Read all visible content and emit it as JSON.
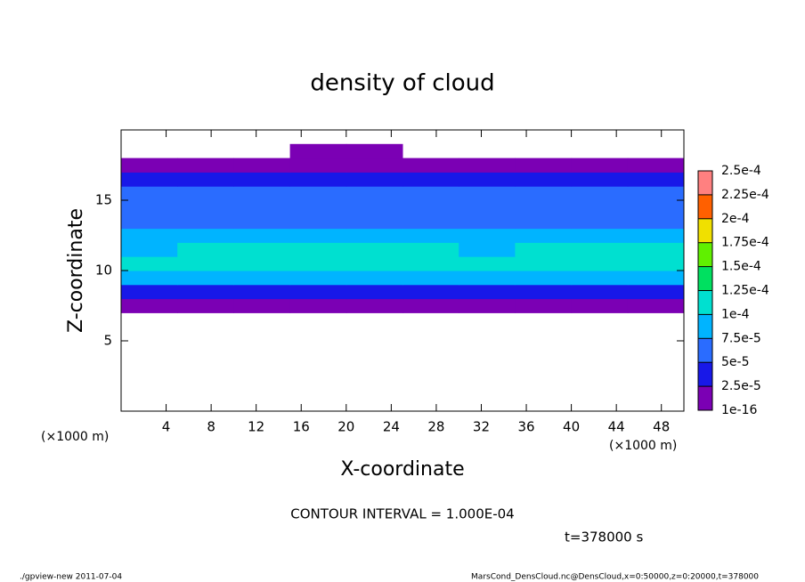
{
  "chart_data": {
    "type": "heatmap",
    "title": "density of cloud",
    "x_label": "X-coordinate",
    "y_label": "Z-coordinate",
    "x_unit_left": "(×1000 m)",
    "x_unit_right": "(×1000 m)",
    "contour_note": "CONTOUR INTERVAL = 1.000E-04",
    "time_note": "t=378000 s",
    "footer_left": "./gpview-new  2011-07-04",
    "footer_right": "MarsCond_DensCloud.nc@DensCloud,x=0:50000,z=0:20000,t=378000",
    "xlim": [
      0,
      50
    ],
    "xticks": [
      4,
      8,
      12,
      16,
      20,
      24,
      28,
      32,
      36,
      40,
      44,
      48
    ],
    "ylim": [
      0,
      20
    ],
    "yticks": [
      5,
      10,
      15
    ],
    "x_edges": [
      0,
      5,
      10,
      15,
      20,
      25,
      30,
      35,
      40,
      45,
      50
    ],
    "z_edges": [
      6,
      7,
      8,
      9,
      10,
      11,
      12,
      13,
      14,
      15,
      16,
      17,
      18,
      19
    ],
    "values": [
      [
        null,
        null,
        null,
        null,
        null,
        null,
        null,
        null,
        null,
        null
      ],
      [
        1e-05,
        1e-05,
        1e-05,
        1e-05,
        1e-05,
        1e-05,
        1e-05,
        1e-05,
        1e-05,
        1e-05
      ],
      [
        4e-05,
        3.5e-05,
        3e-05,
        4e-05,
        4e-05,
        4.5e-05,
        3.5e-05,
        4e-05,
        4e-05,
        4e-05
      ],
      [
        8.5e-05,
        8e-05,
        8.5e-05,
        8e-05,
        8e-05,
        8.5e-05,
        8e-05,
        8.5e-05,
        8e-05,
        8.5e-05
      ],
      [
        0.000105,
        0.000105,
        0.00011,
        0.000105,
        0.000105,
        0.0001,
        0.000105,
        0.000105,
        0.000105,
        0.000105
      ],
      [
        9.5e-05,
        0.000105,
        0.000105,
        0.000105,
        0.000105,
        0.0001,
        9e-05,
        0.000105,
        0.000105,
        0.0001
      ],
      [
        8e-05,
        8.5e-05,
        8.5e-05,
        9e-05,
        9e-05,
        9e-05,
        8e-05,
        8e-05,
        8e-05,
        8e-05
      ],
      [
        7e-05,
        7e-05,
        7e-05,
        7e-05,
        7e-05,
        7e-05,
        7e-05,
        7e-05,
        7e-05,
        7e-05
      ],
      [
        6e-05,
        6e-05,
        6e-05,
        6e-05,
        6e-05,
        6e-05,
        6e-05,
        6e-05,
        6e-05,
        6e-05
      ],
      [
        5e-05,
        5e-05,
        5e-05,
        5e-05,
        5e-05,
        5e-05,
        5e-05,
        5e-05,
        5e-05,
        5e-05
      ],
      [
        3e-05,
        3e-05,
        3e-05,
        3e-05,
        3e-05,
        3e-05,
        3e-05,
        3e-05,
        3e-05,
        3e-05
      ],
      [
        1e-05,
        1e-05,
        1e-05,
        1e-05,
        1e-05,
        1e-05,
        1e-05,
        1e-05,
        1e-05,
        1e-05
      ],
      [
        null,
        null,
        null,
        1e-05,
        1e-05,
        null,
        null,
        null,
        null,
        null
      ]
    ],
    "levels": [
      {
        "value": 1e-16,
        "label": "1e-16"
      },
      {
        "value": 2.5e-05,
        "label": "2.5e-5"
      },
      {
        "value": 5e-05,
        "label": "5e-5"
      },
      {
        "value": 7.5e-05,
        "label": "7.5e-5"
      },
      {
        "value": 0.0001,
        "label": "1e-4"
      },
      {
        "value": 0.000125,
        "label": "1.25e-4"
      },
      {
        "value": 0.00015,
        "label": "1.5e-4"
      },
      {
        "value": 0.000175,
        "label": "1.75e-4"
      },
      {
        "value": 0.0002,
        "label": "2e-4"
      },
      {
        "value": 0.000225,
        "label": "2.25e-4"
      },
      {
        "value": 0.00025,
        "label": "2.5e-4"
      }
    ],
    "colors": [
      "#7b00b4",
      "#1818e8",
      "#2a6cff",
      "#00b4ff",
      "#00e0d0",
      "#00e060",
      "#60f000",
      "#f0e000",
      "#ff6000",
      "#ff8080"
    ]
  }
}
